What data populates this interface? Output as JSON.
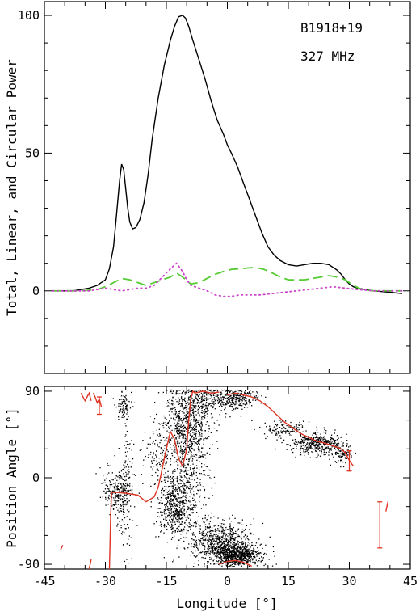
{
  "chart_data": [
    {
      "type": "line",
      "ylabel": "Total, Linear, and Circular Power",
      "annotations": [
        "B1918+19",
        "327 MHz"
      ],
      "xlim": [
        -45,
        45
      ],
      "ylim": [
        -30,
        105
      ],
      "yticks": [
        0,
        50,
        100
      ],
      "series": [
        {
          "color": "#000000",
          "style": "solid",
          "x": [
            -43,
            -38,
            -34,
            -32,
            -30,
            -29,
            -28,
            -27.3,
            -26.5,
            -26,
            -25.5,
            -25,
            -24.5,
            -24,
            -23.3,
            -22.5,
            -21.5,
            -20.5,
            -19.5,
            -18.5,
            -17,
            -15.5,
            -14,
            -13,
            -12,
            -11,
            -10.3,
            -9.5,
            -8.5,
            -7,
            -5.5,
            -4,
            -2.5,
            -1,
            0,
            1,
            2.5,
            4,
            5.5,
            7,
            8.5,
            10,
            11.5,
            13,
            15,
            17,
            19,
            21,
            23,
            25,
            26,
            27,
            28,
            29,
            30,
            31,
            32,
            34,
            36,
            40,
            43
          ],
          "y": [
            0,
            0,
            1,
            2,
            4,
            8,
            16,
            27,
            40,
            46,
            44,
            37,
            30,
            25,
            22.5,
            23,
            26,
            32,
            42,
            55,
            70,
            82,
            91,
            96,
            99.5,
            100,
            99,
            96,
            91,
            84,
            77,
            69,
            62,
            57,
            53,
            50,
            45,
            39,
            33,
            27,
            21,
            16,
            13,
            11,
            9.5,
            9,
            9.5,
            10,
            10,
            9.5,
            8.5,
            7.5,
            6,
            4,
            2.5,
            1.5,
            1,
            0.5,
            0,
            -0.5,
            -1
          ]
        },
        {
          "color": "#55cc33",
          "style": "dashed",
          "x": [
            -43,
            -36,
            -32,
            -30,
            -28,
            -26,
            -24,
            -22,
            -20,
            -18,
            -16,
            -14,
            -12.5,
            -11,
            -9,
            -7,
            -5,
            -3,
            -1,
            1,
            3,
            5,
            7,
            9,
            11,
            13,
            15,
            17,
            19,
            21,
            23,
            25,
            27,
            29,
            31,
            33,
            36,
            40,
            43
          ],
          "y": [
            0,
            0,
            0.5,
            1.5,
            3,
            4.5,
            4,
            3,
            2,
            3,
            4,
            5,
            6.5,
            5,
            2.5,
            3,
            4.5,
            6,
            7,
            7.8,
            8,
            8.3,
            8.5,
            7.8,
            6.5,
            5,
            4,
            4,
            4,
            4.5,
            5,
            5.5,
            5,
            4,
            2,
            0.5,
            0,
            0,
            0
          ]
        },
        {
          "color": "#cc44cc",
          "style": "dotted",
          "x": [
            -43,
            -34,
            -30,
            -28,
            -26,
            -24,
            -22,
            -20,
            -18,
            -16,
            -14,
            -12.5,
            -11,
            -10,
            -9,
            -7,
            -5,
            -3,
            -1,
            1,
            3,
            5,
            8,
            11,
            14,
            17,
            20,
            23,
            26,
            29,
            32,
            36,
            43
          ],
          "y": [
            0,
            0,
            1,
            0.5,
            0,
            0.5,
            1,
            1,
            2,
            5,
            8,
            10,
            7,
            4,
            2,
            1,
            0,
            -1.5,
            -2,
            -2,
            -1.5,
            -1.5,
            -1.5,
            -1,
            -0.5,
            0,
            0.5,
            1,
            1.5,
            1,
            0.5,
            0,
            0
          ]
        }
      ]
    },
    {
      "type": "scatter",
      "xlabel": "Longitude [°]",
      "ylabel": "Position Angle [°]",
      "xlim": [
        -45,
        45
      ],
      "ylim": [
        -95,
        95
      ],
      "xticks": [
        -45,
        -30,
        -15,
        0,
        15,
        30,
        45
      ],
      "yticks": [
        -90,
        0,
        90
      ],
      "point_color": "#000000",
      "line_color": "#dd3322",
      "clusters": [
        {
          "x": -25.5,
          "y": 75,
          "sx": 1.0,
          "sy": 7,
          "n": 90
        },
        {
          "x": -27,
          "y": -15,
          "sx": 1.8,
          "sy": 12,
          "n": 260
        },
        {
          "x": -25,
          "y": 15,
          "sx": 0.8,
          "sy": 22,
          "n": 60
        },
        {
          "x": -25,
          "y": -55,
          "sx": 0.8,
          "sy": 18,
          "n": 40
        },
        {
          "x": -17,
          "y": 20,
          "sx": 2.2,
          "sy": 18,
          "n": 130
        },
        {
          "x": -10,
          "y": 55,
          "sx": 2.8,
          "sy": 22,
          "n": 700
        },
        {
          "x": -13,
          "y": -30,
          "sx": 2.2,
          "sy": 16,
          "n": 450
        },
        {
          "x": -10,
          "y": -5,
          "sx": 3.0,
          "sy": 28,
          "n": 300
        },
        {
          "x": -2,
          "y": -65,
          "sx": 3.8,
          "sy": 10,
          "n": 650
        },
        {
          "x": 2,
          "y": -80,
          "sx": 3.0,
          "sy": 6,
          "n": 750
        },
        {
          "x": -5,
          "y": 80,
          "sx": 4.0,
          "sy": 8,
          "n": 200
        },
        {
          "x": 2,
          "y": 84,
          "sx": 3.0,
          "sy": 5,
          "n": 250
        },
        {
          "x": 14,
          "y": 52,
          "sx": 2.5,
          "sy": 5,
          "n": 130
        },
        {
          "x": 22,
          "y": 36,
          "sx": 3.2,
          "sy": 6,
          "n": 420
        },
        {
          "x": 28,
          "y": 25,
          "sx": 1.5,
          "sy": 5,
          "n": 90
        }
      ],
      "pa_segments": [
        {
          "x": [
            -36,
            -35,
            -34,
            -33.5
          ],
          "y": [
            88,
            80,
            88,
            80
          ]
        },
        {
          "x": [
            -33,
            -32.5,
            -32,
            -31.5,
            -31
          ],
          "y": [
            88,
            84,
            78,
            82,
            74
          ]
        },
        {
          "x": [
            -29,
            -28.7,
            -28.5,
            -28
          ],
          "y": [
            -95,
            -40,
            -16,
            -15
          ]
        },
        {
          "x": [
            -28,
            -25,
            -22,
            -20,
            -18,
            -17,
            -16,
            -15,
            -14,
            -13,
            -12,
            -11,
            -10,
            -9.5,
            -9,
            -8.5,
            -8
          ],
          "y": [
            -15,
            -16,
            -18,
            -25,
            -20,
            -10,
            10,
            30,
            48,
            40,
            20,
            12,
            30,
            60,
            82,
            90,
            88
          ]
        },
        {
          "x": [
            -8,
            -6,
            -4,
            -2
          ],
          "y": [
            88,
            90,
            88,
            89
          ]
        },
        {
          "x": [
            0,
            2,
            4,
            6,
            8,
            10,
            12,
            14,
            16,
            18,
            20,
            22,
            24,
            26,
            28,
            29,
            30,
            31
          ],
          "y": [
            86,
            88,
            86,
            84,
            80,
            74,
            66,
            58,
            52,
            46,
            42,
            38,
            36,
            33,
            30,
            26,
            18,
            12
          ]
        },
        {
          "x": [
            -2,
            0,
            2,
            4,
            6
          ],
          "y": [
            -90,
            -87,
            -86,
            -88,
            -92
          ]
        },
        {
          "x": [
            -41,
            -40.5
          ],
          "y": [
            -75,
            -70
          ]
        },
        {
          "x": [
            -34,
            -33.5
          ],
          "y": [
            -95,
            -85
          ]
        },
        {
          "x": [
            39,
            39.5
          ],
          "y": [
            -35,
            -25
          ]
        }
      ],
      "error_bars": [
        {
          "x": -31.5,
          "y_low": 66,
          "y_high": 84
        },
        {
          "x": 30,
          "y_low": 7,
          "y_high": 28
        },
        {
          "x": 37.5,
          "y_low": -73,
          "y_high": -25
        }
      ]
    }
  ]
}
